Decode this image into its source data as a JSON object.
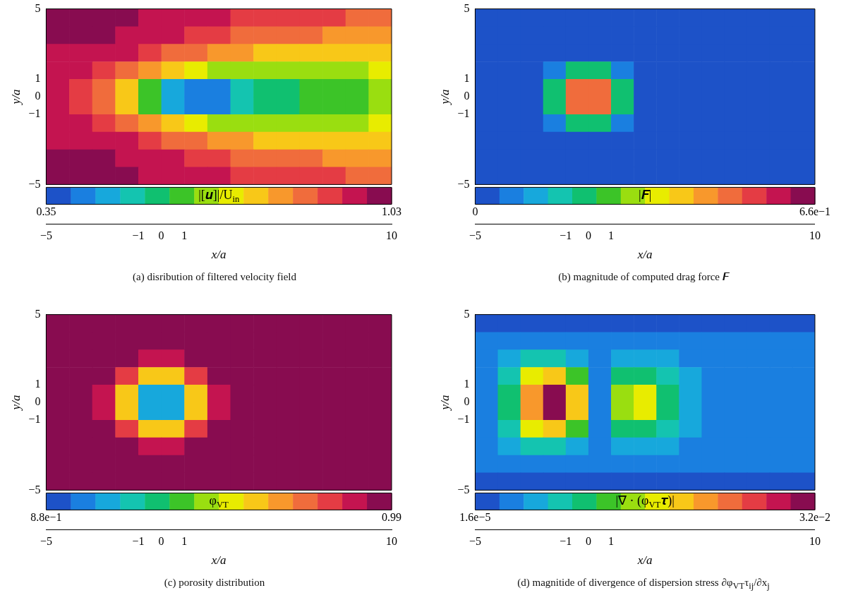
{
  "chart_data": [
    {
      "type": "heatmap",
      "title": "(a) disribution of filtered velocity field",
      "xlabel": "x/a",
      "ylabel": "y/a",
      "clabel": "|[𝒖]|/U$_{in}$",
      "x": [
        -4.5,
        -3.5,
        -2.5,
        -1.5,
        -0.5,
        0.5,
        1.5,
        2.5,
        3.5,
        4.5,
        5.5,
        6.5,
        7.5,
        8.5,
        9.5
      ],
      "y": [
        4.5,
        3.5,
        2.5,
        1.5,
        0.5,
        -0.5,
        -1.5,
        -2.5,
        -3.5,
        -4.5
      ],
      "xlim": [
        -5,
        10
      ],
      "xticks": [
        -5,
        -1,
        0,
        1,
        10
      ],
      "ylim": [
        -5,
        5
      ],
      "yticks": [
        -5,
        -1,
        0,
        1,
        5
      ],
      "clim": [
        0.35,
        1.03
      ],
      "cticks": [
        0.35,
        1.03
      ],
      "cells": [
        [
          1.03,
          1.03,
          1.02,
          1.0,
          0.98,
          0.97,
          0.96,
          0.95,
          0.93,
          0.92,
          0.9,
          0.9,
          0.89,
          0.88,
          0.88
        ],
        [
          1.0,
          1.0,
          0.99,
          0.98,
          0.96,
          0.94,
          0.92,
          0.9,
          0.88,
          0.86,
          0.85,
          0.84,
          0.83,
          0.83,
          0.82
        ],
        [
          0.98,
          0.97,
          0.96,
          0.94,
          0.91,
          0.88,
          0.85,
          0.82,
          0.8,
          0.78,
          0.77,
          0.76,
          0.75,
          0.75,
          0.75
        ],
        [
          0.96,
          0.94,
          0.91,
          0.86,
          0.8,
          0.74,
          0.7,
          0.68,
          0.67,
          0.66,
          0.66,
          0.66,
          0.67,
          0.68,
          0.7
        ],
        [
          0.95,
          0.92,
          0.87,
          0.78,
          0.6,
          0.45,
          0.4,
          0.44,
          0.5,
          0.55,
          0.58,
          0.6,
          0.62,
          0.64,
          0.66
        ],
        [
          0.95,
          0.92,
          0.87,
          0.78,
          0.6,
          0.45,
          0.4,
          0.44,
          0.5,
          0.55,
          0.58,
          0.6,
          0.62,
          0.64,
          0.66
        ],
        [
          0.96,
          0.94,
          0.91,
          0.86,
          0.8,
          0.74,
          0.7,
          0.68,
          0.67,
          0.66,
          0.66,
          0.66,
          0.67,
          0.68,
          0.7
        ],
        [
          0.98,
          0.97,
          0.96,
          0.94,
          0.91,
          0.88,
          0.85,
          0.82,
          0.8,
          0.78,
          0.77,
          0.76,
          0.75,
          0.75,
          0.75
        ],
        [
          1.0,
          1.0,
          0.99,
          0.98,
          0.96,
          0.94,
          0.92,
          0.9,
          0.88,
          0.86,
          0.85,
          0.84,
          0.83,
          0.83,
          0.82
        ],
        [
          1.03,
          1.03,
          1.02,
          1.0,
          0.98,
          0.97,
          0.96,
          0.95,
          0.93,
          0.92,
          0.9,
          0.9,
          0.89,
          0.88,
          0.88
        ]
      ]
    },
    {
      "type": "heatmap",
      "title": "(b) magnitude of computed drag force 𝑭",
      "xlabel": "x/a",
      "ylabel": "y/a",
      "clabel": "|𝑭|",
      "x": [
        -4.5,
        -3.5,
        -2.5,
        -1.5,
        -0.5,
        0.5,
        1.5,
        2.5,
        3.5,
        4.5,
        5.5,
        6.5,
        7.5,
        8.5,
        9.5
      ],
      "y": [
        4.5,
        3.5,
        2.5,
        1.5,
        0.5,
        -0.5,
        -1.5,
        -2.5,
        -3.5,
        -4.5
      ],
      "xlim": [
        -5,
        10
      ],
      "xticks": [
        -5,
        -1,
        0,
        1,
        10
      ],
      "ylim": [
        -5,
        5
      ],
      "yticks": [
        -5,
        -1,
        0,
        1,
        5
      ],
      "clim": [
        0,
        0.66
      ],
      "cticks": [
        0,
        {
          "value": 0.66,
          "label": "6.6e−1"
        }
      ],
      "cells": [
        [
          0,
          0,
          0,
          0,
          0,
          0,
          0,
          0,
          0,
          0,
          0,
          0,
          0,
          0,
          0
        ],
        [
          0,
          0,
          0,
          0,
          0,
          0,
          0,
          0,
          0,
          0,
          0,
          0,
          0,
          0,
          0
        ],
        [
          0,
          0,
          0,
          0.02,
          0.04,
          0.04,
          0.02,
          0,
          0,
          0,
          0,
          0,
          0,
          0,
          0
        ],
        [
          0,
          0,
          0.02,
          0.08,
          0.2,
          0.2,
          0.08,
          0.02,
          0,
          0,
          0,
          0,
          0,
          0,
          0
        ],
        [
          0,
          0,
          0.04,
          0.2,
          0.5,
          0.5,
          0.2,
          0.04,
          0,
          0,
          0,
          0,
          0,
          0,
          0
        ],
        [
          0,
          0,
          0.04,
          0.2,
          0.5,
          0.5,
          0.2,
          0.04,
          0,
          0,
          0,
          0,
          0,
          0,
          0
        ],
        [
          0,
          0,
          0.02,
          0.08,
          0.2,
          0.2,
          0.08,
          0.02,
          0,
          0,
          0,
          0,
          0,
          0,
          0
        ],
        [
          0,
          0,
          0,
          0.02,
          0.04,
          0.04,
          0.02,
          0,
          0,
          0,
          0,
          0,
          0,
          0,
          0
        ],
        [
          0,
          0,
          0,
          0,
          0,
          0,
          0,
          0,
          0,
          0,
          0,
          0,
          0,
          0,
          0
        ],
        [
          0,
          0,
          0,
          0,
          0,
          0,
          0,
          0,
          0,
          0,
          0,
          0,
          0,
          0,
          0
        ]
      ]
    },
    {
      "type": "heatmap",
      "title": "(c) porosity distribution",
      "xlabel": "x/a",
      "ylabel": "y/a",
      "clabel": "φ$_{VT}$",
      "x": [
        -4.5,
        -3.5,
        -2.5,
        -1.5,
        -0.5,
        0.5,
        1.5,
        2.5,
        3.5,
        4.5,
        5.5,
        6.5,
        7.5,
        8.5,
        9.5
      ],
      "y": [
        4.5,
        3.5,
        2.5,
        1.5,
        0.5,
        -0.5,
        -1.5,
        -2.5,
        -3.5,
        -4.5
      ],
      "xlim": [
        -5,
        10
      ],
      "xticks": [
        -5,
        -1,
        0,
        1,
        10
      ],
      "ylim": [
        -5,
        5
      ],
      "yticks": [
        -5,
        -1,
        0,
        1,
        5
      ],
      "clim": [
        0.88,
        0.99
      ],
      "cticks": [
        {
          "value": 0.88,
          "label": "8.8e−1"
        },
        0.99
      ],
      "cells": [
        [
          0.99,
          0.99,
          0.99,
          0.99,
          0.99,
          0.99,
          0.99,
          0.99,
          0.99,
          0.99,
          0.99,
          0.99,
          0.99,
          0.99,
          0.99
        ],
        [
          0.99,
          0.99,
          0.99,
          0.99,
          0.99,
          0.99,
          0.99,
          0.99,
          0.99,
          0.99,
          0.99,
          0.99,
          0.99,
          0.99,
          0.99
        ],
        [
          0.99,
          0.99,
          0.99,
          0.99,
          0.98,
          0.98,
          0.99,
          0.99,
          0.99,
          0.99,
          0.99,
          0.99,
          0.99,
          0.99,
          0.99
        ],
        [
          0.99,
          0.99,
          0.99,
          0.97,
          0.95,
          0.95,
          0.97,
          0.99,
          0.99,
          0.99,
          0.99,
          0.99,
          0.99,
          0.99,
          0.99
        ],
        [
          0.99,
          0.99,
          0.98,
          0.95,
          0.9,
          0.9,
          0.95,
          0.98,
          0.99,
          0.99,
          0.99,
          0.99,
          0.99,
          0.99,
          0.99
        ],
        [
          0.99,
          0.99,
          0.98,
          0.95,
          0.9,
          0.9,
          0.95,
          0.98,
          0.99,
          0.99,
          0.99,
          0.99,
          0.99,
          0.99,
          0.99
        ],
        [
          0.99,
          0.99,
          0.99,
          0.97,
          0.95,
          0.95,
          0.97,
          0.99,
          0.99,
          0.99,
          0.99,
          0.99,
          0.99,
          0.99,
          0.99
        ],
        [
          0.99,
          0.99,
          0.99,
          0.99,
          0.98,
          0.98,
          0.99,
          0.99,
          0.99,
          0.99,
          0.99,
          0.99,
          0.99,
          0.99,
          0.99
        ],
        [
          0.99,
          0.99,
          0.99,
          0.99,
          0.99,
          0.99,
          0.99,
          0.99,
          0.99,
          0.99,
          0.99,
          0.99,
          0.99,
          0.99,
          0.99
        ],
        [
          0.99,
          0.99,
          0.99,
          0.99,
          0.99,
          0.99,
          0.99,
          0.99,
          0.99,
          0.99,
          0.99,
          0.99,
          0.99,
          0.99,
          0.99
        ]
      ]
    },
    {
      "type": "heatmap",
      "title": "(d) magnitide of divergence of dispersion stress ∂φ$_{VT}$τ$_{ij}$/∂x$_{j}$",
      "xlabel": "x/a",
      "ylabel": "y/a",
      "clabel": "|∇ · (φ$_{VT}$𝝉)|",
      "x": [
        -4.5,
        -3.5,
        -2.5,
        -1.5,
        -0.5,
        0.5,
        1.5,
        2.5,
        3.5,
        4.5,
        5.5,
        6.5,
        7.5,
        8.5,
        9.5
      ],
      "y": [
        4.5,
        3.5,
        2.5,
        1.5,
        0.5,
        -0.5,
        -1.5,
        -2.5,
        -3.5,
        -4.5
      ],
      "xlim": [
        -5,
        10
      ],
      "xticks": [
        -5,
        -1,
        0,
        1,
        10
      ],
      "ylim": [
        -5,
        5
      ],
      "yticks": [
        -5,
        -1,
        0,
        1,
        5
      ],
      "clim": [
        1.6e-05,
        0.032
      ],
      "cticks": [
        {
          "value": 1.6e-05,
          "label": "1.6e−5"
        },
        {
          "value": 0.032,
          "label": "3.2e−2"
        }
      ],
      "cells": [
        [
          0.002,
          0.002,
          0.002,
          0.002,
          0.002,
          0.002,
          0.002,
          0.002,
          0.002,
          0.002,
          0.002,
          0.002,
          0.002,
          0.002,
          0.002
        ],
        [
          0.003,
          0.003,
          0.004,
          0.004,
          0.004,
          0.003,
          0.004,
          0.004,
          0.004,
          0.003,
          0.003,
          0.003,
          0.003,
          0.003,
          0.003
        ],
        [
          0.003,
          0.005,
          0.007,
          0.008,
          0.006,
          0.003,
          0.005,
          0.006,
          0.005,
          0.004,
          0.003,
          0.003,
          0.003,
          0.003,
          0.003
        ],
        [
          0.004,
          0.008,
          0.017,
          0.02,
          0.013,
          0.004,
          0.01,
          0.011,
          0.008,
          0.005,
          0.004,
          0.003,
          0.003,
          0.003,
          0.003
        ],
        [
          0.004,
          0.01,
          0.022,
          0.031,
          0.02,
          0.004,
          0.014,
          0.017,
          0.01,
          0.006,
          0.004,
          0.003,
          0.003,
          0.003,
          0.003
        ],
        [
          0.004,
          0.01,
          0.022,
          0.031,
          0.02,
          0.004,
          0.014,
          0.017,
          0.01,
          0.006,
          0.004,
          0.003,
          0.003,
          0.003,
          0.003
        ],
        [
          0.004,
          0.008,
          0.017,
          0.02,
          0.013,
          0.004,
          0.01,
          0.011,
          0.008,
          0.005,
          0.004,
          0.003,
          0.003,
          0.003,
          0.003
        ],
        [
          0.003,
          0.005,
          0.007,
          0.008,
          0.006,
          0.003,
          0.005,
          0.006,
          0.005,
          0.004,
          0.003,
          0.003,
          0.003,
          0.003,
          0.003
        ],
        [
          0.003,
          0.003,
          0.004,
          0.004,
          0.004,
          0.003,
          0.004,
          0.004,
          0.004,
          0.003,
          0.003,
          0.003,
          0.003,
          0.003,
          0.003
        ],
        [
          0.002,
          0.002,
          0.002,
          0.002,
          0.002,
          0.002,
          0.002,
          0.002,
          0.002,
          0.002,
          0.002,
          0.002,
          0.002,
          0.002,
          0.002
        ]
      ]
    }
  ]
}
